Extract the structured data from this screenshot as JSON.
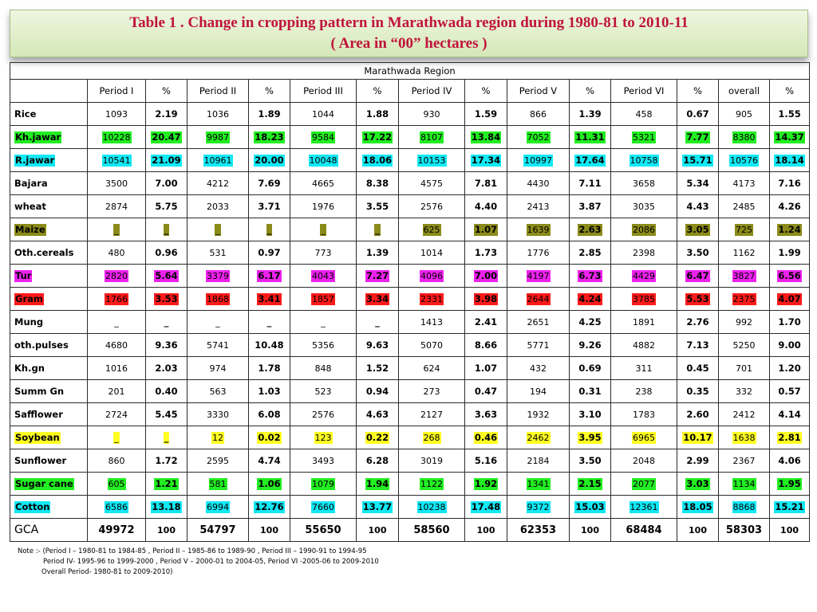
{
  "title": {
    "line1": "Table 1 . Change in cropping pattern in Marathwada region during 1980-81 to 2010-11",
    "line2": "( Area in “00” hectares )"
  },
  "region_label": "Marathwada Region",
  "columns": [
    "",
    "Period I",
    "%",
    "Period II",
    "%",
    "Period III",
    "%",
    "Period IV",
    "%",
    "Period V",
    "%",
    "Period VI",
    "%",
    "overall",
    "%"
  ],
  "highlight_colors": {
    "green": "#22ee22",
    "cyan": "#11e9f5",
    "olive": "#8b8b1a",
    "magenta": "#ee22ee",
    "red": "#ff1a1a",
    "yellow": "#ffff22"
  },
  "rows": [
    {
      "crop": "Rice",
      "highlight": "",
      "values": [
        "1093",
        "2.19",
        "1036",
        "1.89",
        "1044",
        "1.88",
        "930",
        "1.59",
        "866",
        "1.39",
        "458",
        "0.67",
        "905",
        "1.55"
      ]
    },
    {
      "crop": "Kh.jawar",
      "highlight": "green",
      "values": [
        "10228",
        "20.47",
        "9987",
        "18.23",
        "9584",
        "17.22",
        "8107",
        "13.84",
        "7052",
        "11.31",
        "5321",
        "7.77",
        "8380",
        "14.37"
      ]
    },
    {
      "crop": "R.jawar",
      "highlight": "cyan",
      "values": [
        "10541",
        "21.09",
        "10961",
        "20.00",
        "10048",
        "18.06",
        "10153",
        "17.34",
        "10997",
        "17.64",
        "10758",
        "15.71",
        "10576",
        "18.14"
      ]
    },
    {
      "crop": "Bajara",
      "highlight": "",
      "values": [
        "3500",
        "7.00",
        "4212",
        "7.69",
        "4665",
        "8.38",
        "4575",
        "7.81",
        "4430",
        "7.11",
        "3658",
        "5.34",
        "4173",
        "7.16"
      ]
    },
    {
      "crop": "wheat",
      "highlight": "",
      "values": [
        "2874",
        "5.75",
        "2033",
        "3.71",
        "1976",
        "3.55",
        "2576",
        "4.40",
        "2413",
        "3.87",
        "3035",
        "4.43",
        "2485",
        "4.26"
      ]
    },
    {
      "crop": "Maize",
      "highlight": "olive",
      "values": [
        "_",
        "_",
        "_",
        "_",
        "_",
        "_",
        "625",
        "1.07",
        "1639",
        "2.63",
        "2086",
        "3.05",
        "725",
        "1.24"
      ]
    },
    {
      "crop": "Oth.cereals",
      "highlight": "",
      "values": [
        "480",
        "0.96",
        "531",
        "0.97",
        "773",
        "1.39",
        "1014",
        "1.73",
        "1776",
        "2.85",
        "2398",
        "3.50",
        "1162",
        "1.99"
      ]
    },
    {
      "crop": "Tur",
      "highlight": "magenta",
      "values": [
        "2820",
        "5.64",
        "3379",
        "6.17",
        "4043",
        "7.27",
        "4096",
        "7.00",
        "4197",
        "6.73",
        "4429",
        "6.47",
        "3827",
        "6.56"
      ]
    },
    {
      "crop": "Gram",
      "highlight": "red",
      "values": [
        "1766",
        "3.53",
        "1868",
        "3.41",
        "1857",
        "3.34",
        "2331",
        "3.98",
        "2644",
        "4.24",
        "3785",
        "5.53",
        "2375",
        "4.07"
      ]
    },
    {
      "crop": "Mung",
      "highlight": "",
      "values": [
        "_",
        "_",
        "_",
        "_",
        "_",
        "_",
        "1413",
        "2.41",
        "2651",
        "4.25",
        "1891",
        "2.76",
        "992",
        "1.70"
      ]
    },
    {
      "crop": "oth.pulses",
      "highlight": "",
      "values": [
        "4680",
        "9.36",
        "5741",
        "10.48",
        "5356",
        "9.63",
        "5070",
        "8.66",
        "5771",
        "9.26",
        "4882",
        "7.13",
        "5250",
        "9.00"
      ]
    },
    {
      "crop": "Kh.gn",
      "highlight": "",
      "values": [
        "1016",
        "2.03",
        "974",
        "1.78",
        "848",
        "1.52",
        "624",
        "1.07",
        "432",
        "0.69",
        "311",
        "0.45",
        "701",
        "1.20"
      ]
    },
    {
      "crop": "Summ Gn",
      "highlight": "",
      "values": [
        "201",
        "0.40",
        "563",
        "1.03",
        "523",
        "0.94",
        "273",
        "0.47",
        "194",
        "0.31",
        "238",
        "0.35",
        "332",
        "0.57"
      ]
    },
    {
      "crop": "Safflower",
      "highlight": "",
      "values": [
        "2724",
        "5.45",
        "3330",
        "6.08",
        "2576",
        "4.63",
        "2127",
        "3.63",
        "1932",
        "3.10",
        "1783",
        "2.60",
        "2412",
        "4.14"
      ]
    },
    {
      "crop": "Soybean",
      "highlight": "yellow",
      "values": [
        "_",
        "_",
        "12",
        "0.02",
        "123",
        "0.22",
        "268",
        "0.46",
        "2462",
        "3.95",
        "6965",
        "10.17",
        "1638",
        "2.81"
      ]
    },
    {
      "crop": "Sunflower",
      "highlight": "",
      "values": [
        "860",
        "1.72",
        "2595",
        "4.74",
        "3493",
        "6.28",
        "3019",
        "5.16",
        "2184",
        "3.50",
        "2048",
        "2.99",
        "2367",
        "4.06"
      ]
    },
    {
      "crop": "Sugar cane",
      "highlight": "green",
      "values": [
        "605",
        "1.21",
        "581",
        "1.06",
        "1079",
        "1.94",
        "1122",
        "1.92",
        "1341",
        "2.15",
        "2077",
        "3.03",
        "1134",
        "1.95"
      ]
    },
    {
      "crop": "Cotton",
      "highlight": "cyan",
      "values": [
        "6586",
        "13.18",
        "6994",
        "12.76",
        "7660",
        "13.77",
        "10238",
        "17.48",
        "9372",
        "15.03",
        "12361",
        "18.05",
        "8868",
        "15.21"
      ]
    }
  ],
  "total_row": {
    "crop": "GCA",
    "values": [
      "49972",
      "100",
      "54797",
      "100",
      "55650",
      "100",
      "58560",
      "100",
      "62353",
      "100",
      "68484",
      "100",
      "58303",
      "100"
    ]
  },
  "note": {
    "line1": "Note :- (Period I – 1980-81 to 1984-85 , Period II – 1985-86 to 1989-90 , Period III – 1990-91 to 1994-95",
    "line2": "Period IV- 1995-96 to 1999-2000 , Period V – 2000-01 to 2004-05, Period VI -2005-06 to 2009-2010",
    "line3": "Overall Period- 1980-81 to 2009-2010)"
  }
}
